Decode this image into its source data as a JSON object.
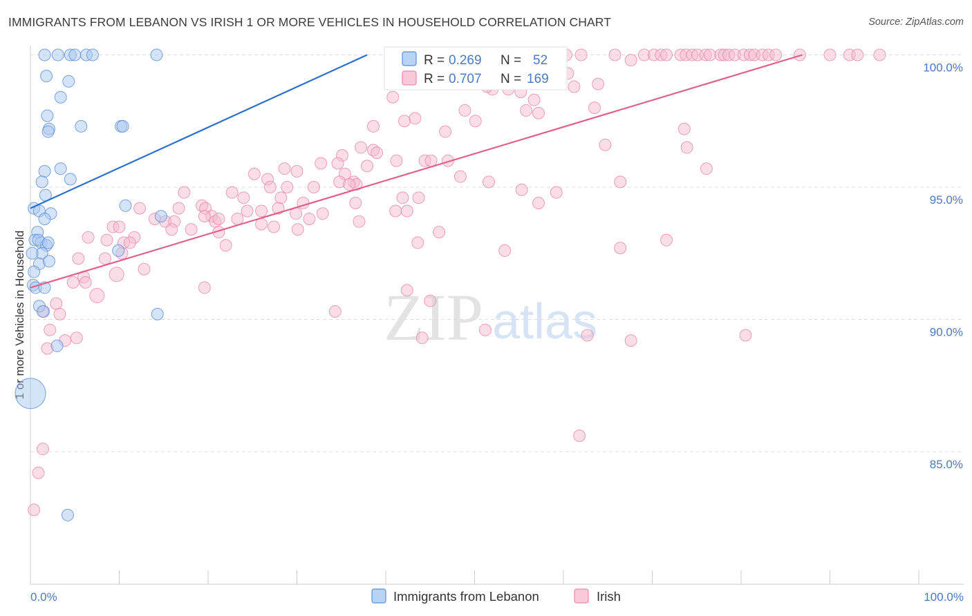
{
  "title": "IMMIGRANTS FROM LEBANON VS IRISH 1 OR MORE VEHICLES IN HOUSEHOLD CORRELATION CHART",
  "source": "Source: ZipAtlas.com",
  "watermark": {
    "zip": "ZIP",
    "atlas": "atlas"
  },
  "colors": {
    "blue_fill": "#a9c8f0",
    "blue_stroke": "#5a8fd6",
    "blue_line": "#2a6fd0",
    "pink_fill": "#f6bcd0",
    "pink_stroke": "#e58aaa",
    "pink_line": "#e0608a",
    "grid": "#dddddd",
    "tick_text": "#4a78c2"
  },
  "legend": {
    "r_label": "R =",
    "n_label": "N =",
    "rows": [
      {
        "r": "0.269",
        "n": "52"
      },
      {
        "r": "0.707",
        "n": "169"
      }
    ]
  },
  "chart_data": {
    "type": "scatter",
    "title": "IMMIGRANTS FROM LEBANON VS IRISH 1 OR MORE VEHICLES IN HOUSEHOLD CORRELATION CHART",
    "xlabel": "",
    "ylabel": "1 or more Vehicles in Household",
    "xlim": [
      0,
      100
    ],
    "ylim": [
      80.4,
      100.4
    ],
    "x_tick_labels": [
      "0.0%",
      "100.0%"
    ],
    "y_ticks": [
      85,
      90,
      95,
      100
    ],
    "y_tick_labels": [
      "85.0%",
      "90.0%",
      "95.0%",
      "100.0%"
    ],
    "legend_position": "top-center",
    "series": [
      {
        "name": "Immigrants from Lebanon",
        "color": "blue",
        "r": 0.269,
        "n": 52,
        "trend": {
          "x": [
            0,
            37.9
          ],
          "y": [
            94.2,
            100.0
          ]
        },
        "points": [
          [
            1.6,
            100.0
          ],
          [
            3.1,
            100.0
          ],
          [
            4.5,
            100.0
          ],
          [
            5.0,
            100.0
          ],
          [
            6.3,
            100.0
          ],
          [
            7.0,
            100.0
          ],
          [
            14.2,
            100.0
          ],
          [
            1.8,
            99.2
          ],
          [
            4.3,
            99.0
          ],
          [
            3.4,
            98.4
          ],
          [
            1.9,
            97.7
          ],
          [
            5.7,
            97.3
          ],
          [
            2.1,
            97.2
          ],
          [
            2.0,
            97.1
          ],
          [
            10.2,
            97.3
          ],
          [
            10.4,
            97.3
          ],
          [
            1.6,
            95.6
          ],
          [
            3.4,
            95.7
          ],
          [
            4.5,
            95.3
          ],
          [
            1.3,
            95.2
          ],
          [
            1.7,
            94.7
          ],
          [
            2.3,
            94.0
          ],
          [
            0.4,
            94.2
          ],
          [
            1.0,
            94.1
          ],
          [
            1.6,
            93.8
          ],
          [
            10.7,
            94.3
          ],
          [
            14.7,
            93.9
          ],
          [
            0.8,
            93.3
          ],
          [
            0.5,
            93.0
          ],
          [
            1.2,
            92.9
          ],
          [
            1.8,
            92.8
          ],
          [
            0.9,
            93.0
          ],
          [
            2.0,
            92.9
          ],
          [
            1.3,
            92.5
          ],
          [
            0.2,
            92.5
          ],
          [
            9.9,
            92.6
          ],
          [
            1.0,
            92.1
          ],
          [
            2.1,
            92.2
          ],
          [
            0.4,
            91.8
          ],
          [
            0.3,
            91.3
          ],
          [
            0.6,
            91.2
          ],
          [
            1.6,
            91.2
          ],
          [
            1.0,
            90.5
          ],
          [
            1.4,
            90.3
          ],
          [
            14.3,
            90.2
          ],
          [
            3.0,
            89.0
          ],
          [
            4.2,
            82.6
          ],
          [
            0.0,
            87.2
          ]
        ]
      },
      {
        "name": "Irish",
        "color": "pink",
        "r": 0.707,
        "n": 169,
        "trend": {
          "x": [
            0,
            86.9
          ],
          "y": [
            91.2,
            100.0
          ]
        },
        "points": [
          [
            45.6,
            100.0
          ],
          [
            54.3,
            100.0
          ],
          [
            56.1,
            100.0
          ],
          [
            60.3,
            100.0
          ],
          [
            62.0,
            100.0
          ],
          [
            65.8,
            100.0
          ],
          [
            69.1,
            100.0
          ],
          [
            70.2,
            100.0
          ],
          [
            71.0,
            100.0
          ],
          [
            71.6,
            100.0
          ],
          [
            73.2,
            100.0
          ],
          [
            73.8,
            100.0
          ],
          [
            74.5,
            100.0
          ],
          [
            75.1,
            100.0
          ],
          [
            76.0,
            100.0
          ],
          [
            76.5,
            100.0
          ],
          [
            77.7,
            100.0
          ],
          [
            78.1,
            100.0
          ],
          [
            78.6,
            100.0
          ],
          [
            79.3,
            100.0
          ],
          [
            80.3,
            100.0
          ],
          [
            81.0,
            100.0
          ],
          [
            81.5,
            100.0
          ],
          [
            82.4,
            100.0
          ],
          [
            83.1,
            100.0
          ],
          [
            83.9,
            100.0
          ],
          [
            86.6,
            100.0
          ],
          [
            90.0,
            100.0
          ],
          [
            92.2,
            100.0
          ],
          [
            93.1,
            100.0
          ],
          [
            95.6,
            100.0
          ],
          [
            67.6,
            99.8
          ],
          [
            60.5,
            99.3
          ],
          [
            52.0,
            98.7
          ],
          [
            51.4,
            98.8
          ],
          [
            53.8,
            98.7
          ],
          [
            61.2,
            98.8
          ],
          [
            63.9,
            98.9
          ],
          [
            55.2,
            98.6
          ],
          [
            56.7,
            98.3
          ],
          [
            55.8,
            97.9
          ],
          [
            48.9,
            97.9
          ],
          [
            40.8,
            98.4
          ],
          [
            63.5,
            98.0
          ],
          [
            57.2,
            97.8
          ],
          [
            50.1,
            97.5
          ],
          [
            43.3,
            97.6
          ],
          [
            42.1,
            97.5
          ],
          [
            46.7,
            97.1
          ],
          [
            38.6,
            97.3
          ],
          [
            73.6,
            97.2
          ],
          [
            64.7,
            96.6
          ],
          [
            73.9,
            96.5
          ],
          [
            37.2,
            96.5
          ],
          [
            38.6,
            96.4
          ],
          [
            39.0,
            96.3
          ],
          [
            41.2,
            96.0
          ],
          [
            44.4,
            96.0
          ],
          [
            35.1,
            96.2
          ],
          [
            37.9,
            95.8
          ],
          [
            32.7,
            95.9
          ],
          [
            34.6,
            95.9
          ],
          [
            45.1,
            96.0
          ],
          [
            47.0,
            96.0
          ],
          [
            76.1,
            95.7
          ],
          [
            28.6,
            95.7
          ],
          [
            30.0,
            95.6
          ],
          [
            25.2,
            95.5
          ],
          [
            35.4,
            95.5
          ],
          [
            36.4,
            95.2
          ],
          [
            36.7,
            95.1
          ],
          [
            48.4,
            95.4
          ],
          [
            51.6,
            95.2
          ],
          [
            66.4,
            95.2
          ],
          [
            26.7,
            95.3
          ],
          [
            27.0,
            95.0
          ],
          [
            28.9,
            95.0
          ],
          [
            31.9,
            95.0
          ],
          [
            34.8,
            95.2
          ],
          [
            35.9,
            95.1
          ],
          [
            55.3,
            94.9
          ],
          [
            59.2,
            94.8
          ],
          [
            17.3,
            94.8
          ],
          [
            22.7,
            94.8
          ],
          [
            24.0,
            94.6
          ],
          [
            28.2,
            94.6
          ],
          [
            41.9,
            94.6
          ],
          [
            43.7,
            94.6
          ],
          [
            19.3,
            94.3
          ],
          [
            27.9,
            94.2
          ],
          [
            30.7,
            94.4
          ],
          [
            36.6,
            94.4
          ],
          [
            57.2,
            94.4
          ],
          [
            32.9,
            94.0
          ],
          [
            41.1,
            94.1
          ],
          [
            42.4,
            94.1
          ],
          [
            12.3,
            94.2
          ],
          [
            16.7,
            94.2
          ],
          [
            19.7,
            94.2
          ],
          [
            24.4,
            94.1
          ],
          [
            26.0,
            94.1
          ],
          [
            29.9,
            94.0
          ],
          [
            20.4,
            93.9
          ],
          [
            37.0,
            93.7
          ],
          [
            14.0,
            93.8
          ],
          [
            15.2,
            93.7
          ],
          [
            16.2,
            93.7
          ],
          [
            19.6,
            93.9
          ],
          [
            20.8,
            93.7
          ],
          [
            21.2,
            93.8
          ],
          [
            23.3,
            93.8
          ],
          [
            26.0,
            93.6
          ],
          [
            27.4,
            93.5
          ],
          [
            31.4,
            93.8
          ],
          [
            9.3,
            93.5
          ],
          [
            10.0,
            93.5
          ],
          [
            18.1,
            93.4
          ],
          [
            15.9,
            93.4
          ],
          [
            30.1,
            93.4
          ],
          [
            46.0,
            93.3
          ],
          [
            21.2,
            93.3
          ],
          [
            6.5,
            93.1
          ],
          [
            8.6,
            93.0
          ],
          [
            11.7,
            93.1
          ],
          [
            10.5,
            92.9
          ],
          [
            11.2,
            92.9
          ],
          [
            43.6,
            92.9
          ],
          [
            71.6,
            93.0
          ],
          [
            66.4,
            92.7
          ],
          [
            53.4,
            92.6
          ],
          [
            22.0,
            92.8
          ],
          [
            5.4,
            92.3
          ],
          [
            8.4,
            92.3
          ],
          [
            10.3,
            92.5
          ],
          [
            12.8,
            91.9
          ],
          [
            9.7,
            91.7
          ],
          [
            19.6,
            91.2
          ],
          [
            42.4,
            91.1
          ],
          [
            45.0,
            90.7
          ],
          [
            6.0,
            91.6
          ],
          [
            4.8,
            91.4
          ],
          [
            6.2,
            91.4
          ],
          [
            7.5,
            90.9
          ],
          [
            2.9,
            90.6
          ],
          [
            1.5,
            90.3
          ],
          [
            3.3,
            90.2
          ],
          [
            34.3,
            90.3
          ],
          [
            2.2,
            89.6
          ],
          [
            5.2,
            89.3
          ],
          [
            3.9,
            89.2
          ],
          [
            44.1,
            89.3
          ],
          [
            51.2,
            89.6
          ],
          [
            62.7,
            89.4
          ],
          [
            80.5,
            89.4
          ],
          [
            67.6,
            89.2
          ],
          [
            1.9,
            88.9
          ],
          [
            61.8,
            85.6
          ],
          [
            1.4,
            85.1
          ],
          [
            0.9,
            84.2
          ],
          [
            0.4,
            82.8
          ]
        ]
      }
    ]
  },
  "axis": {
    "ylabel": "1 or more Vehicles in Household",
    "x_left": "0.0%",
    "x_right": "100.0%"
  },
  "bottom_legend": [
    {
      "label": "Immigrants from Lebanon",
      "color": "blue"
    },
    {
      "label": "Irish",
      "color": "pink"
    }
  ]
}
